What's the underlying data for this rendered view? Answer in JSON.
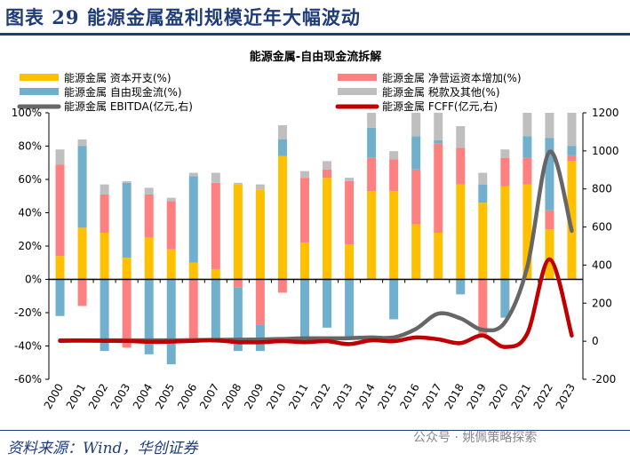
{
  "header": {
    "title": "图表 29  能源金属盈利规模近年大幅波动"
  },
  "footer": {
    "source": "资料来源：Wind，华创证券",
    "watermark": "公众号 · 姚佩策略探索"
  },
  "chart_data": {
    "type": "bar",
    "title": "能源金属-自由现金流拆解",
    "categories": [
      "2000",
      "2001",
      "2002",
      "2003",
      "2004",
      "2005",
      "2006",
      "2007",
      "2008",
      "2009",
      "2010",
      "2011",
      "2012",
      "2013",
      "2014",
      "2015",
      "2016",
      "2017",
      "2018",
      "2019",
      "2020",
      "2021",
      "2022",
      "2023"
    ],
    "series": [
      {
        "name": "能源金属 资本开支(%)",
        "color": "#FFC000",
        "values": [
          14,
          31,
          28,
          13,
          25,
          18,
          10,
          6,
          57,
          54,
          74,
          22,
          61,
          21,
          53,
          53,
          33,
          28,
          57,
          46,
          56,
          57,
          30,
          71
        ]
      },
      {
        "name": "能源金属 净营运资本增加(%)",
        "color": "#FF8080",
        "values": [
          55,
          -16,
          23,
          -41,
          26,
          29,
          -38,
          52,
          -5,
          -27,
          -8,
          39,
          5,
          38,
          20,
          19,
          33,
          53.5,
          22,
          -33,
          17,
          16,
          11.5,
          3.5
        ]
      },
      {
        "name": "能源金属 自由现金流(%)",
        "color": "#70B0CC",
        "values": [
          -22,
          49,
          -43,
          45,
          -45,
          -51,
          52,
          -38,
          -38,
          -16,
          10,
          -36,
          -29,
          -35,
          18,
          -24,
          20,
          2,
          -9,
          11,
          -23,
          13,
          43.5,
          5.5
        ]
      },
      {
        "name": "能源金属 税款及其他(%)",
        "color": "#BFBFBF",
        "values": [
          9,
          4,
          6,
          1,
          4,
          2,
          2,
          6,
          1,
          3,
          8.5,
          4,
          5,
          2,
          9,
          5,
          14,
          16.5,
          13,
          7,
          5,
          14,
          15,
          20
        ]
      }
    ],
    "line_series": [
      {
        "name": "能源金属 EBITDA(亿元,右)",
        "color": "#666666",
        "values": [
          5,
          5,
          5,
          5,
          5,
          5,
          6,
          7,
          8,
          9,
          12,
          15,
          15,
          16,
          20,
          20,
          65,
          145,
          120,
          60,
          100,
          390,
          995,
          580
        ]
      },
      {
        "name": "能源金属 FCFF(亿元,右)",
        "color": "#C00000",
        "values": [
          2,
          3,
          2,
          1,
          -3,
          -2,
          2,
          5,
          -5,
          -5,
          0,
          -5,
          0,
          -15,
          5,
          0,
          20,
          10,
          -10,
          30,
          -30,
          40,
          430,
          30
        ]
      }
    ],
    "y_left": {
      "ticks": [
        "100%",
        "80%",
        "60%",
        "40%",
        "20%",
        "0%",
        "-20%",
        "-40%",
        "-60%"
      ],
      "ylim": [
        -60,
        100
      ]
    },
    "y_right": {
      "ticks": [
        "1200",
        "1000",
        "800",
        "600",
        "400",
        "200",
        "0",
        "-200"
      ],
      "ylim": [
        -200,
        1200
      ]
    },
    "legend": "top",
    "grid": false
  }
}
